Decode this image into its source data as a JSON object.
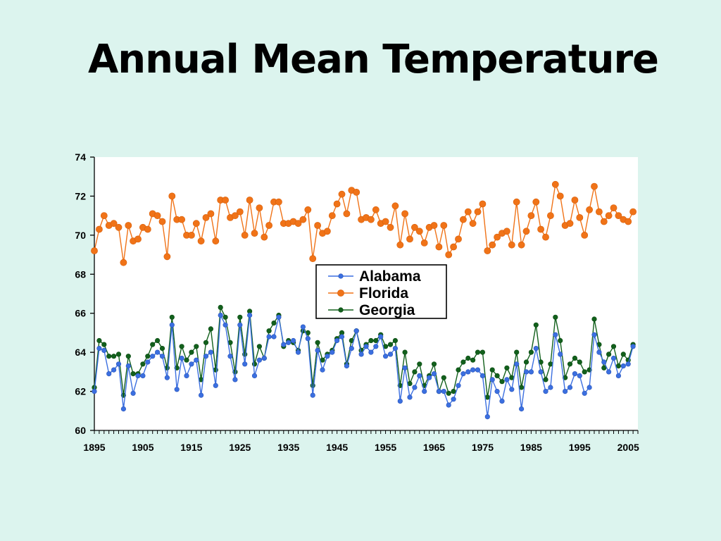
{
  "title": "Annual Mean Temperature",
  "chart_data": {
    "type": "line",
    "title": "Annual Mean Temperature",
    "xlabel": "",
    "ylabel": "",
    "xlim": [
      1895,
      2007
    ],
    "ylim": [
      60,
      74
    ],
    "yticks": [
      60,
      62,
      64,
      66,
      68,
      70,
      72,
      74
    ],
    "xticks": [
      1895,
      1905,
      1915,
      1925,
      1935,
      1945,
      1955,
      1965,
      1975,
      1985,
      1995,
      2005
    ],
    "grid": false,
    "legend_position": "center",
    "x_start": 1895,
    "x_end": 2006,
    "series": [
      {
        "name": "Alabama",
        "color": "#3b6fe0",
        "marker_stroke": "#2a55b8",
        "values": [
          62.0,
          64.2,
          64.1,
          62.9,
          63.1,
          63.4,
          61.1,
          63.3,
          61.9,
          62.8,
          62.8,
          63.5,
          63.8,
          64.0,
          63.8,
          62.7,
          65.4,
          62.1,
          63.7,
          62.8,
          63.4,
          63.6,
          61.8,
          63.8,
          64.0,
          62.3,
          65.9,
          65.4,
          63.8,
          62.6,
          65.4,
          63.4,
          65.9,
          62.8,
          63.6,
          63.7,
          64.8,
          64.8,
          65.8,
          64.4,
          64.5,
          64.6,
          64.0,
          65.3,
          64.7,
          61.8,
          64.1,
          63.1,
          63.8,
          64.0,
          64.6,
          64.8,
          63.3,
          64.2,
          65.1,
          63.9,
          64.3,
          64.0,
          64.3,
          64.8,
          63.8,
          63.9,
          64.2,
          61.5,
          63.2,
          61.7,
          62.2,
          62.8,
          62.0,
          62.7,
          62.9,
          62.0,
          62.0,
          61.3,
          61.6,
          62.3,
          62.9,
          63.0,
          63.1,
          63.1,
          62.8,
          60.7,
          62.6,
          62.0,
          61.5,
          62.6,
          62.1,
          63.4,
          61.1,
          63.0,
          63.0,
          64.2,
          63.0,
          62.0,
          62.2,
          64.9,
          63.9,
          62.0,
          62.2,
          62.9,
          62.8,
          61.9,
          62.2,
          64.9,
          64.0,
          63.5,
          63.0,
          63.7,
          62.8,
          63.3,
          63.4,
          64.3
        ]
      },
      {
        "name": "Florida",
        "color": "#f07318",
        "marker_stroke": "#d85e08",
        "values": [
          69.2,
          70.3,
          71.0,
          70.5,
          70.6,
          70.4,
          68.6,
          70.5,
          69.7,
          69.8,
          70.4,
          70.3,
          71.1,
          71.0,
          70.7,
          68.9,
          72.0,
          70.8,
          70.8,
          70.0,
          70.0,
          70.6,
          69.7,
          70.9,
          71.1,
          69.7,
          71.8,
          71.8,
          70.9,
          71.0,
          71.2,
          70.0,
          71.8,
          70.1,
          71.4,
          69.9,
          70.5,
          71.7,
          71.7,
          70.6,
          70.6,
          70.7,
          70.6,
          70.8,
          71.3,
          68.8,
          70.5,
          70.1,
          70.2,
          71.0,
          71.6,
          72.1,
          71.1,
          72.3,
          72.2,
          70.8,
          70.9,
          70.8,
          71.3,
          70.6,
          70.7,
          70.4,
          71.5,
          69.5,
          71.1,
          69.8,
          70.4,
          70.2,
          69.6,
          70.4,
          70.5,
          69.4,
          70.5,
          69.0,
          69.4,
          69.8,
          70.8,
          71.2,
          70.6,
          71.2,
          71.6,
          69.2,
          69.5,
          69.9,
          70.1,
          70.2,
          69.5,
          71.7,
          69.5,
          70.2,
          71.0,
          71.7,
          70.3,
          69.9,
          71.0,
          72.6,
          72.0,
          70.5,
          70.6,
          71.8,
          70.9,
          70.0,
          71.3,
          72.5,
          71.2,
          70.7,
          71.0,
          71.4,
          71.0,
          70.8,
          70.7,
          71.2
        ]
      },
      {
        "name": "Georgia",
        "color": "#12601c",
        "marker_stroke": "#0a4a12",
        "values": [
          62.2,
          64.6,
          64.4,
          63.8,
          63.8,
          63.9,
          61.8,
          63.8,
          62.9,
          62.9,
          63.4,
          63.8,
          64.4,
          64.6,
          64.2,
          63.2,
          65.8,
          63.2,
          64.3,
          63.6,
          64.0,
          64.3,
          62.6,
          64.5,
          65.2,
          63.1,
          66.3,
          65.8,
          64.5,
          63.0,
          65.8,
          63.9,
          66.1,
          63.4,
          64.3,
          63.7,
          65.1,
          65.5,
          65.9,
          64.3,
          64.6,
          64.5,
          64.1,
          65.1,
          65.0,
          62.3,
          64.5,
          63.6,
          63.9,
          64.1,
          64.7,
          65.0,
          63.4,
          64.6,
          65.1,
          64.1,
          64.4,
          64.6,
          64.6,
          64.9,
          64.3,
          64.4,
          64.6,
          62.3,
          64.0,
          62.4,
          63.0,
          63.4,
          62.3,
          62.8,
          63.4,
          62.0,
          62.7,
          61.9,
          62.0,
          63.1,
          63.5,
          63.7,
          63.6,
          64.0,
          64.0,
          61.7,
          63.1,
          62.8,
          62.5,
          63.2,
          62.7,
          64.0,
          62.2,
          63.5,
          64.0,
          65.4,
          63.5,
          62.6,
          63.4,
          65.8,
          64.6,
          62.7,
          63.4,
          63.7,
          63.5,
          63.0,
          63.1,
          65.7,
          64.4,
          63.2,
          63.9,
          64.3,
          63.3,
          63.9,
          63.6,
          64.4
        ]
      }
    ]
  }
}
